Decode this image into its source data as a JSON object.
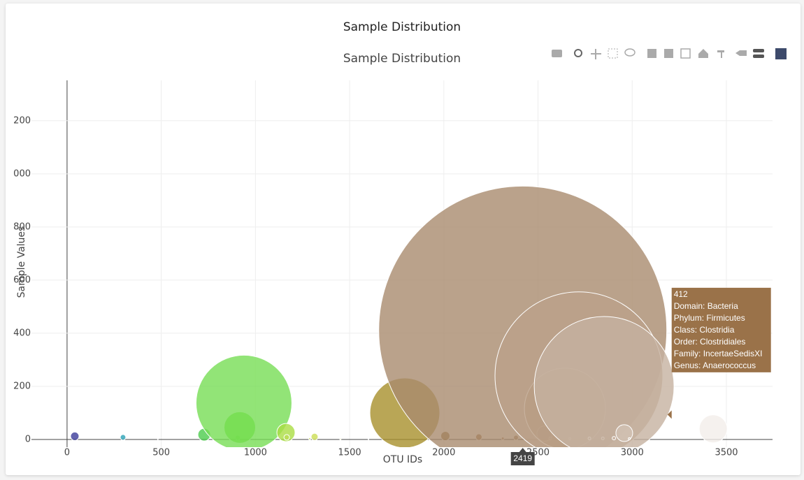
{
  "page_title": "Sample Distribution",
  "chart_data": {
    "type": "bubble",
    "title": "Sample Distribution",
    "x_label": "OTU IDs",
    "y_label": "Sample Values",
    "x": [
      41,
      297,
      482,
      728,
      906,
      917,
      939,
      1162,
      1166,
      1288,
      1314,
      1451,
      1600,
      1793,
      2008,
      2186,
      2313,
      2383,
      2419,
      2535,
      2565,
      2643,
      2669,
      2717,
      2773,
      2844,
      2851,
      2903,
      2958,
      2985,
      3430
    ],
    "y": [
      12,
      8,
      1,
      18,
      7,
      45,
      137,
      26,
      8,
      3,
      10,
      2,
      1,
      100,
      13,
      9,
      4,
      7,
      412,
      22,
      4,
      116,
      3,
      240,
      4,
      4,
      200,
      5,
      24,
      3,
      40
    ],
    "colors": [
      "#3b3b99",
      "#2aa1b5",
      "#3cbab0",
      "#4ccc4c",
      "#66dd44",
      "#66dd33",
      "#77dd55",
      "#aadd44",
      "#bbdd55",
      "#ccdd66",
      "#ccdd55",
      "#dddd77",
      "#ddcc88",
      "#a8902c",
      "#8a6428",
      "#946232",
      "#a07850",
      "#a07a55",
      "#a98b6e",
      "#ad9075",
      "#b09478",
      "#ab8d70",
      "#b49a80",
      "#bba18a",
      "#bea690",
      "#c4ae9a",
      "#c6b2a0",
      "#ccb8a8",
      "#d2c2b4",
      "#d8cabe",
      "#f2eeea"
    ],
    "xlim": [
      -189,
      3745
    ],
    "ylim": [
      -29,
      1352
    ],
    "xticks": [
      0,
      500,
      1000,
      1500,
      2000,
      2500,
      3000,
      3500
    ],
    "yticks": [
      0,
      200,
      400,
      600,
      800,
      {
        "value": 1000,
        "label": "000"
      },
      {
        "value": 1200,
        "label": "200"
      }
    ],
    "grid": true,
    "hover": {
      "x": 2419,
      "y": 412,
      "color": "#9a7249",
      "text": [
        "Domain: Bacteria",
        "Phylum: Firmicutes",
        "Class: Clostridia",
        "Order: Clostridiales",
        "Family: IncertaeSedisXI",
        "Genus: Anaerococcus"
      ]
    }
  }
}
